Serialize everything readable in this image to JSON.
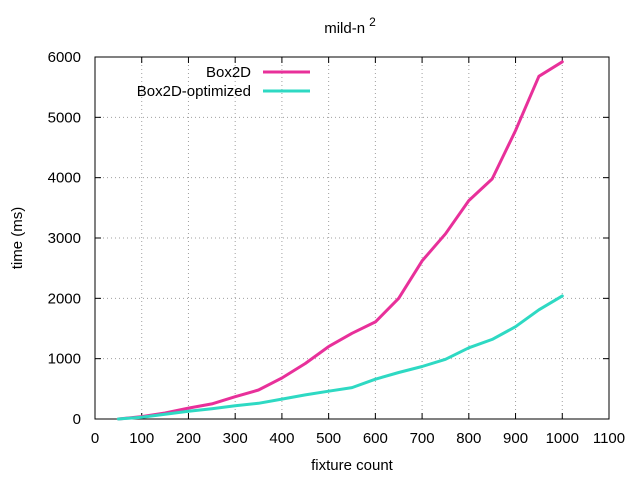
{
  "chart_data": {
    "type": "line",
    "title": "mild-n",
    "title_superscript": "2",
    "xlabel": "fixture count",
    "ylabel": "time (ms)",
    "xlim": [
      0,
      1100
    ],
    "ylim": [
      0,
      6000
    ],
    "xticks": [
      0,
      100,
      200,
      300,
      400,
      500,
      600,
      700,
      800,
      900,
      1000,
      1100
    ],
    "yticks": [
      0,
      1000,
      2000,
      3000,
      4000,
      5000,
      6000
    ],
    "grid": true,
    "legend_position": "top-left",
    "series": [
      {
        "name": "Box2D",
        "color": "#e8309a",
        "x": [
          50,
          100,
          150,
          200,
          250,
          300,
          350,
          400,
          450,
          500,
          550,
          600,
          650,
          700,
          750,
          800,
          850,
          900,
          950,
          1000
        ],
        "values": [
          0,
          40,
          100,
          180,
          250,
          370,
          480,
          680,
          920,
          1200,
          1420,
          1610,
          2000,
          2620,
          3070,
          3620,
          3980,
          4780,
          5680,
          5920
        ]
      },
      {
        "name": "Box2D-optimized",
        "color": "#2ed9c3",
        "x": [
          50,
          100,
          150,
          200,
          250,
          300,
          350,
          400,
          450,
          500,
          550,
          600,
          650,
          700,
          750,
          800,
          850,
          900,
          950,
          1000
        ],
        "values": [
          0,
          30,
          80,
          130,
          170,
          220,
          260,
          330,
          400,
          460,
          520,
          660,
          770,
          870,
          990,
          1180,
          1320,
          1530,
          1810,
          2040
        ]
      }
    ]
  }
}
